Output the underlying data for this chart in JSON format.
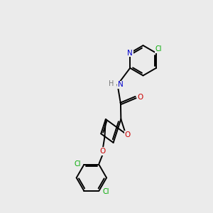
{
  "bg_color": "#ebebeb",
  "bond_color": "#000000",
  "atom_colors": {
    "N": "#0000cc",
    "O": "#cc0000",
    "Cl": "#00aa00",
    "H": "#777777"
  },
  "bond_lw": 1.4,
  "double_sep": 0.09,
  "font_size": 7.5
}
